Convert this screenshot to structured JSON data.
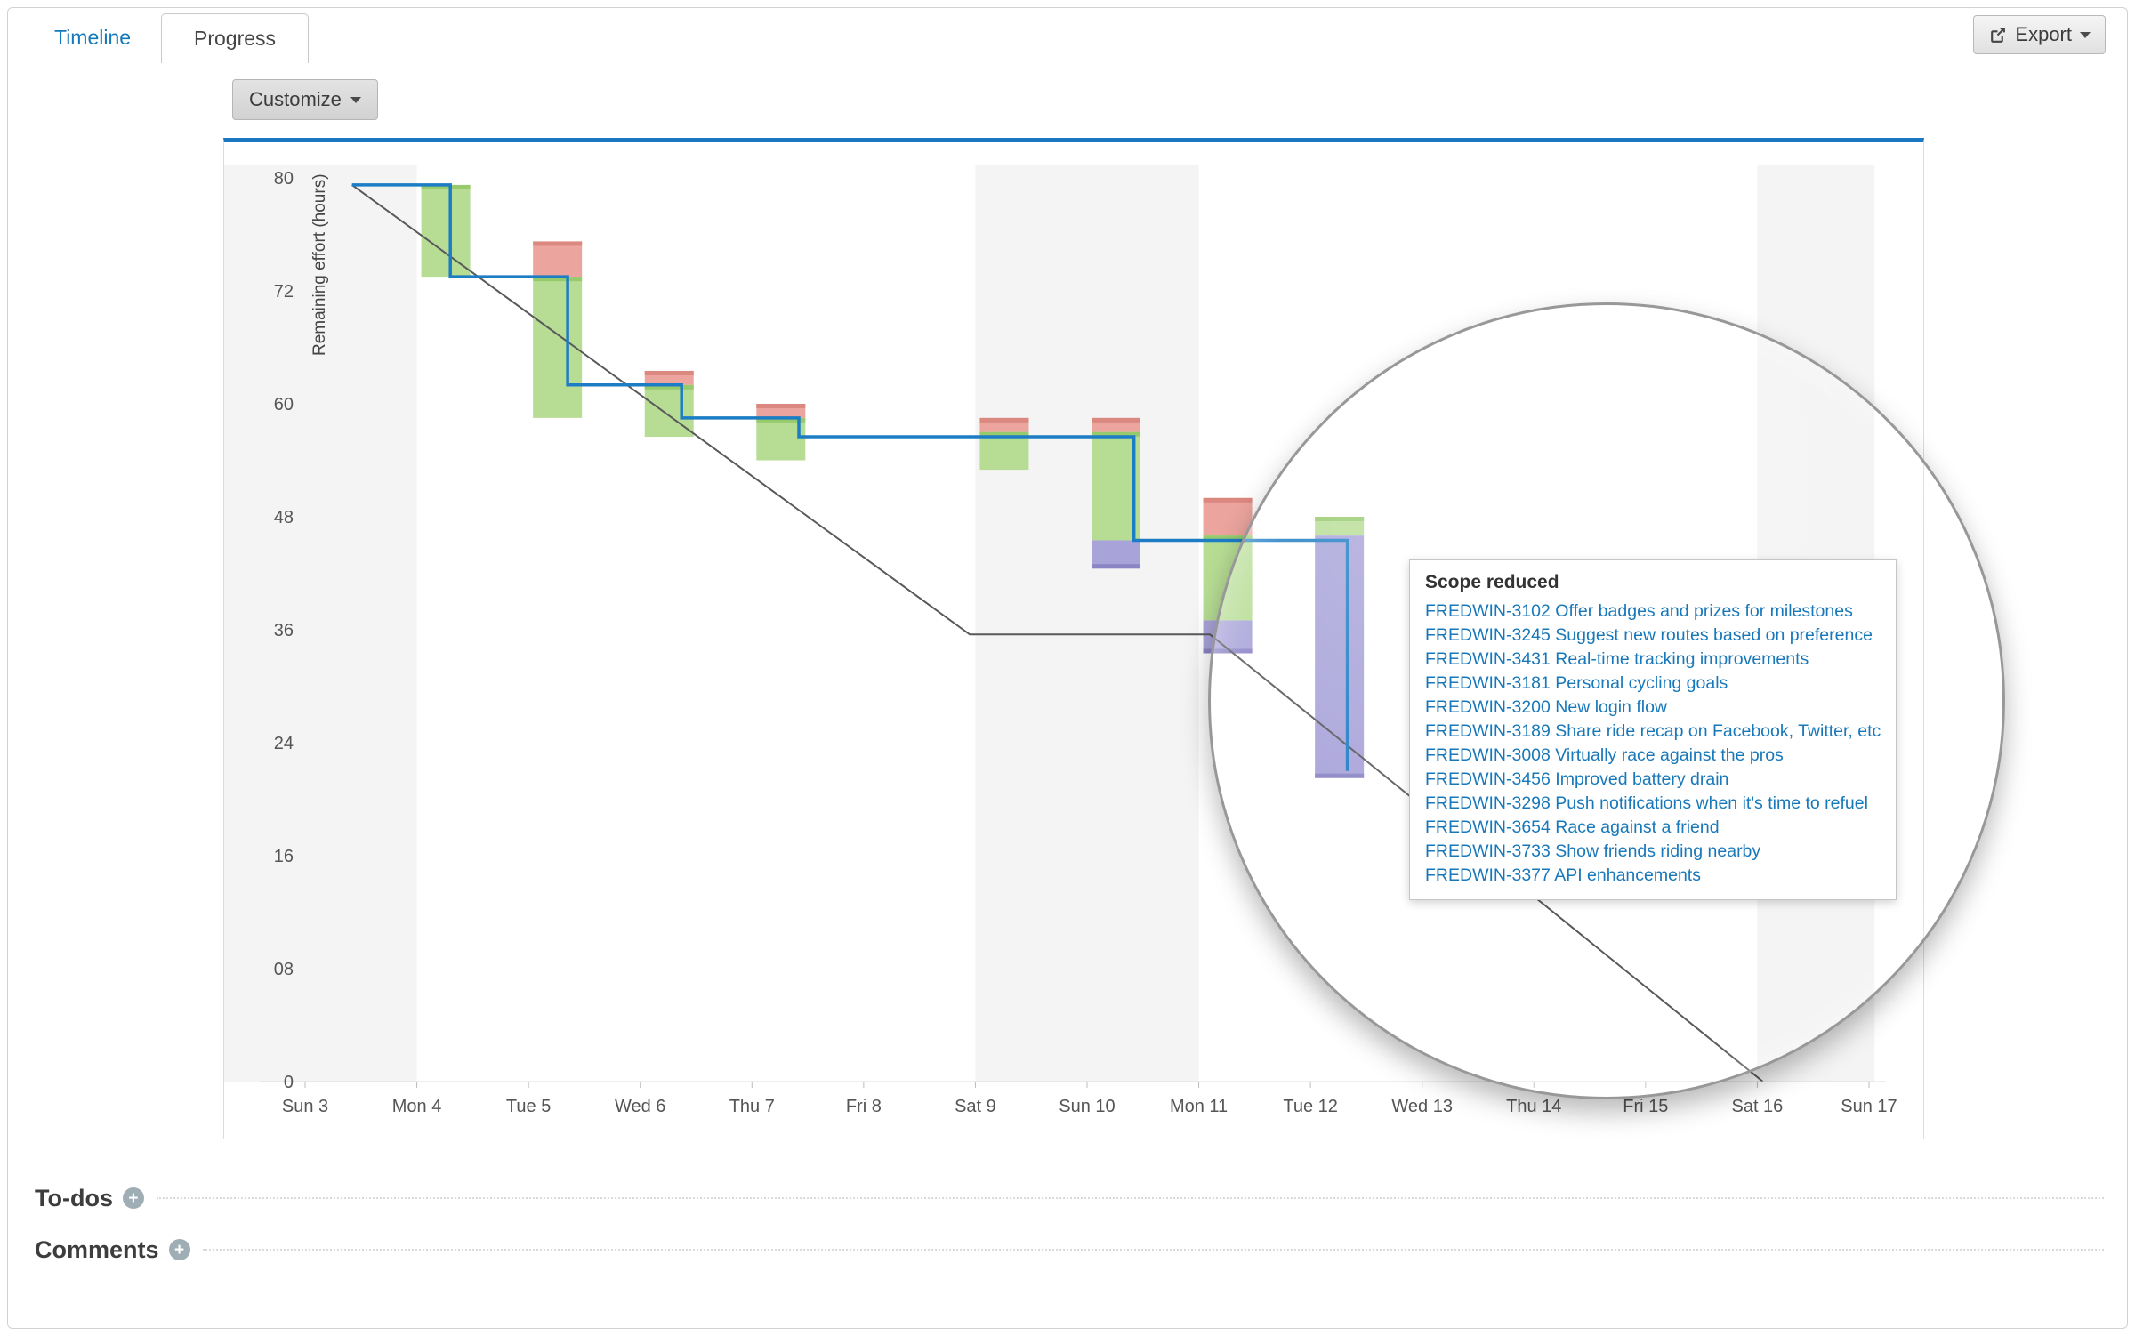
{
  "header": {
    "tabs": [
      {
        "label": "Timeline",
        "active": false
      },
      {
        "label": "Progress",
        "active": true
      }
    ],
    "export_label": "Export",
    "customize_label": "Customize"
  },
  "icons": {
    "add_plus": "+"
  },
  "tooltip": {
    "title": "Scope reduced",
    "items": [
      "FREDWIN-3102 Offer badges and prizes for milestones",
      "FREDWIN-3245 Suggest new routes based on preference",
      "FREDWIN-3431 Real-time tracking improvements",
      "FREDWIN-3181 Personal cycling goals",
      "FREDWIN-3200 New login flow",
      "FREDWIN-3189 Share ride recap on Facebook, Twitter, etc",
      "FREDWIN-3008 Virtually race against the pros",
      "FREDWIN-3456 Improved battery drain",
      "FREDWIN-3298 Push notifications when it's time to refuel",
      "FREDWIN-3654 Race against a friend",
      "FREDWIN-3733 Show friends riding nearby",
      "FREDWIN-3377 API enhancements"
    ]
  },
  "sections": {
    "todos_label": "To-dos",
    "comments_label": "Comments"
  },
  "chart_data": {
    "type": "burndown",
    "ylabel": "Remaining effort (hours)",
    "y_ticks": [
      {
        "value": 0,
        "label": "0"
      },
      {
        "value": 8,
        "label": "08"
      },
      {
        "value": 16,
        "label": "16"
      },
      {
        "value": 24,
        "label": "24"
      },
      {
        "value": 36,
        "label": "36"
      },
      {
        "value": 48,
        "label": "48"
      },
      {
        "value": 60,
        "label": "60"
      },
      {
        "value": 72,
        "label": "72"
      },
      {
        "value": 80,
        "label": "80"
      }
    ],
    "x_labels": [
      "Sun 3",
      "Mon 4",
      "Tue 5",
      "Wed 6",
      "Thu 7",
      "Fri 8",
      "Sat 9",
      "Sun 10",
      "Mon 11",
      "Tue 12",
      "Wed 13",
      "Thu 14",
      "Fri 15",
      "Sat 16",
      "Sun 17"
    ],
    "weekend_bands": [
      [
        -0.73,
        1.0
      ],
      [
        6.0,
        8.0
      ],
      [
        13.0,
        14.05
      ]
    ],
    "ideal_line": [
      [
        0.42,
        79.5
      ],
      [
        5.95,
        35.5
      ],
      [
        8.1,
        35.5
      ],
      [
        13.05,
        0
      ]
    ],
    "actual_step_line": [
      [
        0.42,
        79.5
      ],
      [
        1.3,
        79.5
      ],
      [
        1.3,
        73
      ],
      [
        2.35,
        73
      ],
      [
        2.35,
        62
      ],
      [
        3.37,
        62
      ],
      [
        3.37,
        58.5
      ],
      [
        4.42,
        58.5
      ],
      [
        4.42,
        56.5
      ],
      [
        7.42,
        56.5
      ],
      [
        7.42,
        45.5
      ],
      [
        9.33,
        45.5
      ],
      [
        9.33,
        22
      ]
    ],
    "bars": [
      {
        "day": 1,
        "segments": [
          {
            "kind": "completed",
            "from": 79.5,
            "to": 73
          }
        ]
      },
      {
        "day": 2,
        "segments": [
          {
            "kind": "added",
            "from": 75.5,
            "to": 73
          },
          {
            "kind": "completed",
            "from": 73,
            "to": 58.5
          }
        ]
      },
      {
        "day": 3,
        "segments": [
          {
            "kind": "added",
            "from": 63.5,
            "to": 62
          },
          {
            "kind": "completed",
            "from": 62,
            "to": 56.5
          }
        ]
      },
      {
        "day": 4,
        "segments": [
          {
            "kind": "added",
            "from": 60,
            "to": 58.5
          },
          {
            "kind": "completed",
            "from": 58.5,
            "to": 54
          }
        ]
      },
      {
        "day": 6,
        "segments": [
          {
            "kind": "added",
            "from": 58.5,
            "to": 57
          },
          {
            "kind": "completed",
            "from": 57,
            "to": 53
          }
        ]
      },
      {
        "day": 7,
        "segments": [
          {
            "kind": "added",
            "from": 58.5,
            "to": 57
          },
          {
            "kind": "completed",
            "from": 57,
            "to": 45.5
          },
          {
            "kind": "reduced",
            "from": 45.5,
            "to": 42.5
          }
        ]
      },
      {
        "day": 8,
        "segments": [
          {
            "kind": "added",
            "from": 50,
            "to": 46
          },
          {
            "kind": "completed",
            "from": 46,
            "to": 37
          },
          {
            "kind": "reduced",
            "from": 37,
            "to": 33.5
          }
        ]
      },
      {
        "day": 9,
        "segments": [
          {
            "kind": "completed",
            "from": 48,
            "to": 46
          },
          {
            "kind": "reduced",
            "from": 46,
            "to": 21.5
          }
        ]
      }
    ],
    "colors": {
      "actual": "#1d7dc4",
      "ideal": "#59595b",
      "completed": "#b7dd94",
      "completed_cap": "#97c96d",
      "added": "#eba49e",
      "added_cap": "#db8880",
      "reduced": "#a8a3d9",
      "reduced_cap": "#8b85c6",
      "weekend": "#f4f4f4",
      "accent_blue": "#1b78c0",
      "link_blue": "#1878ba"
    }
  }
}
